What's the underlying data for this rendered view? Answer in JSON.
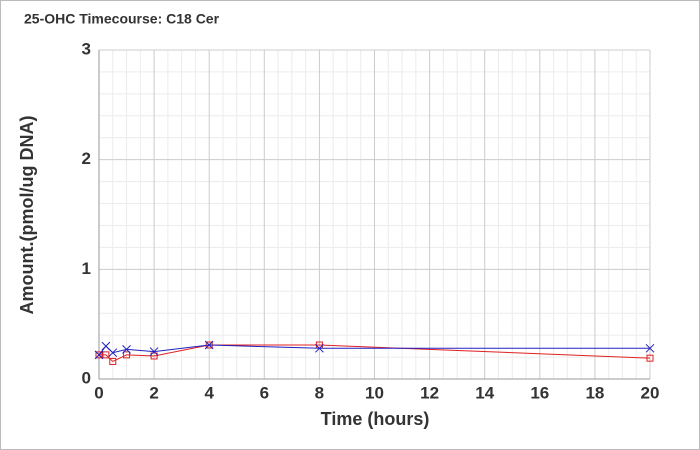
{
  "chart_data": {
    "type": "line",
    "title": "25-OHC Timecourse: C18 Cer",
    "xlabel": "Time (hours)",
    "ylabel": "Amount.(pmol/ug DNA)",
    "x": [
      0,
      0.25,
      0.5,
      1,
      2,
      4,
      8,
      20
    ],
    "series": [
      {
        "color": "#e02020",
        "marker": "square",
        "values": [
          0.22,
          0.22,
          0.16,
          0.22,
          0.21,
          0.31,
          0.31,
          0.19
        ]
      },
      {
        "color": "#2020c0",
        "marker": "x",
        "values": [
          0.22,
          0.3,
          0.24,
          0.27,
          0.25,
          0.31,
          0.28,
          0.28
        ]
      }
    ],
    "xlim": [
      0,
      20
    ],
    "ylim": [
      0,
      3
    ],
    "xticks": [
      0,
      2,
      4,
      6,
      8,
      10,
      12,
      14,
      16,
      18,
      20
    ],
    "yticks": [
      0,
      1,
      2,
      3
    ],
    "grid": true,
    "minor_divisions": [
      4,
      5
    ]
  }
}
